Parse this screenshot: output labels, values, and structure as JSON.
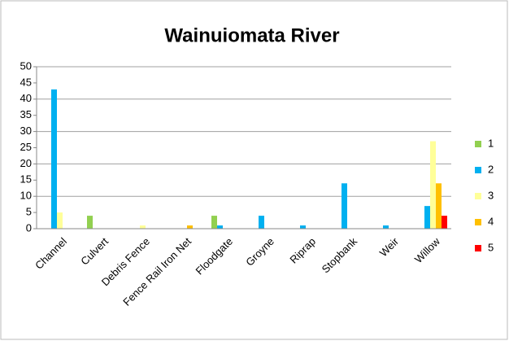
{
  "chart_data": {
    "type": "bar",
    "title": "Wainuiomata River",
    "categories": [
      "Channel",
      "Culvert",
      "Debris Fence",
      "Fence Rail Iron Net",
      "Floodgate",
      "Groyne",
      "Riprap",
      "Stopbank",
      "Weir",
      "Willow"
    ],
    "series": [
      {
        "name": "1",
        "color": "#92d050",
        "values": [
          0,
          4,
          0,
          0,
          4,
          0,
          0,
          0,
          0,
          0
        ]
      },
      {
        "name": "2",
        "color": "#00b0f0",
        "values": [
          43,
          0,
          0,
          0,
          1,
          4,
          1,
          14,
          1,
          7
        ]
      },
      {
        "name": "3",
        "color": "#ffff99",
        "values": [
          5,
          0,
          1,
          0,
          0,
          0,
          0,
          0,
          0,
          27
        ]
      },
      {
        "name": "4",
        "color": "#ffc000",
        "values": [
          0,
          0,
          0,
          1,
          0,
          0,
          0,
          0,
          0,
          14
        ]
      },
      {
        "name": "5",
        "color": "#ff0000",
        "values": [
          0,
          0,
          0,
          0,
          0,
          0,
          0,
          0,
          0,
          4
        ]
      }
    ],
    "ylim": [
      0,
      50
    ],
    "yticks": [
      0,
      5,
      10,
      15,
      20,
      25,
      30,
      35,
      40,
      45,
      50
    ],
    "ygrid": [
      10,
      20,
      30,
      40,
      50
    ],
    "legend": "right"
  }
}
